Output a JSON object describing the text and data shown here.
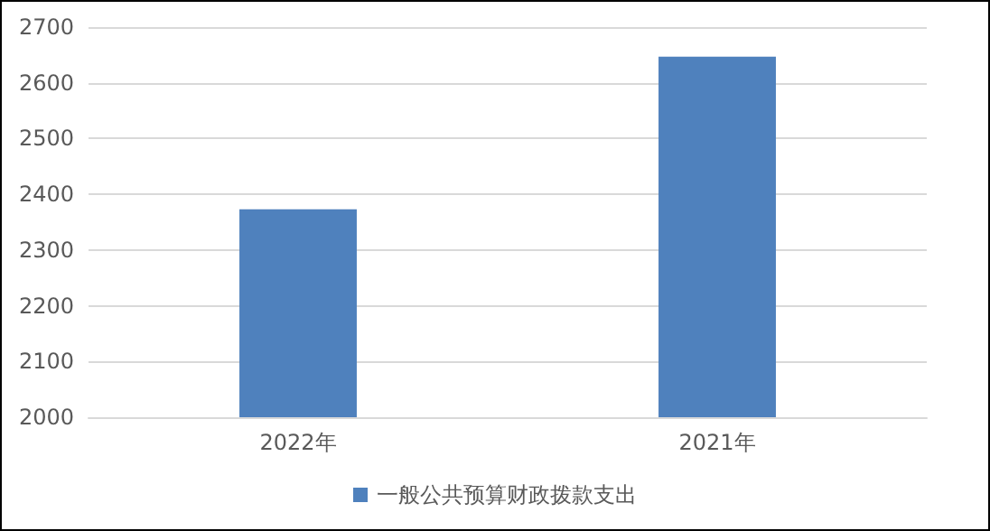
{
  "chart_data": {
    "type": "bar",
    "categories": [
      "2022年",
      "2021年"
    ],
    "series": [
      {
        "name": "一般公共预算财政拨款支出",
        "color": "#4f81bd",
        "values": [
          2373,
          2647
        ]
      }
    ],
    "ylim": [
      2000,
      2700
    ],
    "yticks": [
      2000,
      2100,
      2200,
      2300,
      2400,
      2500,
      2600,
      2700
    ],
    "grid": "y",
    "legend": "bottom"
  }
}
